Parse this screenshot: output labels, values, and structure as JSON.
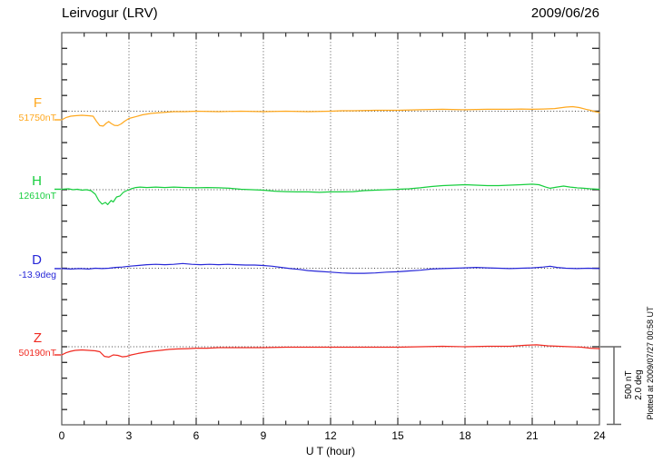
{
  "header": {
    "title": "Leirvogur (LRV)",
    "date": "2009/06/26"
  },
  "axis": {
    "xlabel": "U T (hour)",
    "x_ticks": [
      "0",
      "3",
      "6",
      "9",
      "12",
      "15",
      "18",
      "21",
      "24"
    ]
  },
  "scale_bar": {
    "nt": "500 nT",
    "deg": "2.0 deg"
  },
  "footer": {
    "note": "Plotted at 2009/07/27 00:58 UT"
  },
  "chart_data": {
    "type": "line",
    "title": "Leirvogur (LRV)",
    "date": "2009/06/26",
    "xlabel": "U T (hour)",
    "x_range": [
      0,
      24
    ],
    "x_ticks": [
      0,
      3,
      6,
      9,
      12,
      15,
      18,
      21,
      24
    ],
    "grid": "vertical dotted lines every 3 hours; dotted horizontal baseline per channel",
    "legend_position": "left channel labels",
    "scale": {
      "bar_nT": 500,
      "bar_deg": 2.0,
      "note": "vertical scale bar equals 500 nT or 2.0 deg"
    },
    "series": [
      {
        "name": "F",
        "value_label": "51750nT",
        "base_value": 51750,
        "unit": "nT",
        "color": "#FFA81E",
        "points": [
          [
            0,
            -55
          ],
          [
            0.2,
            -40
          ],
          [
            0.4,
            -32
          ],
          [
            0.6,
            -29
          ],
          [
            0.9,
            -26
          ],
          [
            1.2,
            -29
          ],
          [
            1.4,
            -32
          ],
          [
            1.55,
            -64
          ],
          [
            1.7,
            -92
          ],
          [
            1.85,
            -95
          ],
          [
            2.0,
            -75
          ],
          [
            2.1,
            -66
          ],
          [
            2.2,
            -78
          ],
          [
            2.35,
            -90
          ],
          [
            2.5,
            -92
          ],
          [
            2.65,
            -81
          ],
          [
            2.8,
            -64
          ],
          [
            3.0,
            -46
          ],
          [
            3.3,
            -35
          ],
          [
            3.6,
            -23
          ],
          [
            4.0,
            -14
          ],
          [
            4.4,
            -9
          ],
          [
            5.0,
            -3
          ],
          [
            5.5,
            -3
          ],
          [
            6,
            0
          ],
          [
            7,
            -3
          ],
          [
            8,
            0
          ],
          [
            9,
            -3
          ],
          [
            10,
            0
          ],
          [
            11,
            -3
          ],
          [
            12,
            0
          ],
          [
            12.5,
            3
          ],
          [
            13,
            3
          ],
          [
            14,
            6
          ],
          [
            15,
            6
          ],
          [
            16,
            9
          ],
          [
            17,
            12
          ],
          [
            18,
            9
          ],
          [
            19,
            12
          ],
          [
            20,
            12
          ],
          [
            20.5,
            14
          ],
          [
            21,
            12
          ],
          [
            21.5,
            14
          ],
          [
            22,
            17
          ],
          [
            22.5,
            26
          ],
          [
            22.8,
            29
          ],
          [
            23.1,
            23
          ],
          [
            23.4,
            12
          ],
          [
            23.6,
            6
          ],
          [
            23.8,
            -3
          ],
          [
            24,
            -9
          ]
        ]
      },
      {
        "name": "H",
        "value_label": "12610nT",
        "base_value": 12610,
        "unit": "nT",
        "color": "#17CE3E",
        "points": [
          [
            0,
            3
          ],
          [
            0.3,
            6
          ],
          [
            0.5,
            0
          ],
          [
            0.7,
            3
          ],
          [
            0.9,
            -3
          ],
          [
            1.1,
            0
          ],
          [
            1.3,
            -6
          ],
          [
            1.5,
            -29
          ],
          [
            1.65,
            -69
          ],
          [
            1.8,
            -92
          ],
          [
            1.95,
            -81
          ],
          [
            2.05,
            -95
          ],
          [
            2.2,
            -69
          ],
          [
            2.3,
            -78
          ],
          [
            2.45,
            -46
          ],
          [
            2.6,
            -40
          ],
          [
            2.75,
            -17
          ],
          [
            2.9,
            -6
          ],
          [
            3.1,
            6
          ],
          [
            3.3,
            14
          ],
          [
            3.5,
            17
          ],
          [
            3.8,
            14
          ],
          [
            4.2,
            17
          ],
          [
            4.6,
            14
          ],
          [
            5.0,
            17
          ],
          [
            5.5,
            14
          ],
          [
            6.0,
            12
          ],
          [
            6.5,
            14
          ],
          [
            7.0,
            12
          ],
          [
            7.5,
            9
          ],
          [
            8.0,
            3
          ],
          [
            8.5,
            0
          ],
          [
            9.0,
            -3
          ],
          [
            9.5,
            -9
          ],
          [
            10,
            -12
          ],
          [
            10.5,
            -14
          ],
          [
            11,
            -14
          ],
          [
            11.5,
            -17
          ],
          [
            12,
            -14
          ],
          [
            12.5,
            -14
          ],
          [
            13,
            -12
          ],
          [
            13.5,
            -6
          ],
          [
            14,
            -3
          ],
          [
            14.5,
            0
          ],
          [
            15,
            3
          ],
          [
            15.5,
            6
          ],
          [
            16,
            12
          ],
          [
            16.5,
            20
          ],
          [
            17,
            26
          ],
          [
            17.5,
            29
          ],
          [
            18,
            32
          ],
          [
            18.5,
            29
          ],
          [
            19,
            26
          ],
          [
            19.5,
            26
          ],
          [
            20,
            29
          ],
          [
            20.5,
            32
          ],
          [
            21,
            35
          ],
          [
            21.3,
            32
          ],
          [
            21.6,
            17
          ],
          [
            21.8,
            9
          ],
          [
            22.1,
            17
          ],
          [
            22.4,
            23
          ],
          [
            22.7,
            17
          ],
          [
            23,
            12
          ],
          [
            23.3,
            9
          ],
          [
            23.6,
            6
          ],
          [
            24,
            3
          ]
        ]
      },
      {
        "name": "D",
        "value_label": "-13.9deg",
        "base_value": -13.9,
        "unit": "deg",
        "color": "#2727D8",
        "points": [
          [
            0,
            -0.01
          ],
          [
            0.4,
            -0.02
          ],
          [
            0.8,
            -0.01
          ],
          [
            1.2,
            -0.02
          ],
          [
            1.5,
            0
          ],
          [
            1.8,
            -0.01
          ],
          [
            2.1,
            0
          ],
          [
            2.4,
            0.02
          ],
          [
            2.7,
            0.03
          ],
          [
            3.0,
            0.05
          ],
          [
            3.4,
            0.07
          ],
          [
            3.8,
            0.09
          ],
          [
            4.2,
            0.1
          ],
          [
            4.6,
            0.09
          ],
          [
            5.0,
            0.1
          ],
          [
            5.4,
            0.12
          ],
          [
            5.8,
            0.1
          ],
          [
            6.2,
            0.09
          ],
          [
            6.6,
            0.1
          ],
          [
            7.0,
            0.09
          ],
          [
            7.4,
            0.1
          ],
          [
            7.8,
            0.09
          ],
          [
            8.2,
            0.08
          ],
          [
            8.6,
            0.08
          ],
          [
            9.0,
            0.07
          ],
          [
            9.4,
            0.05
          ],
          [
            9.8,
            0.02
          ],
          [
            10.2,
            -0.01
          ],
          [
            10.6,
            -0.03
          ],
          [
            11,
            -0.06
          ],
          [
            11.5,
            -0.08
          ],
          [
            12,
            -0.1
          ],
          [
            12.5,
            -0.12
          ],
          [
            13,
            -0.13
          ],
          [
            13.5,
            -0.13
          ],
          [
            14,
            -0.12
          ],
          [
            14.5,
            -0.1
          ],
          [
            15,
            -0.09
          ],
          [
            15.5,
            -0.07
          ],
          [
            16,
            -0.05
          ],
          [
            16.5,
            -0.02
          ],
          [
            17,
            -0.01
          ],
          [
            17.5,
            0
          ],
          [
            18,
            0.01
          ],
          [
            18.5,
            0.02
          ],
          [
            19,
            0.01
          ],
          [
            19.5,
            0
          ],
          [
            20,
            -0.01
          ],
          [
            20.5,
            0
          ],
          [
            21,
            0.01
          ],
          [
            21.5,
            0.03
          ],
          [
            21.8,
            0.05
          ],
          [
            22.1,
            0.02
          ],
          [
            22.5,
            0
          ],
          [
            23,
            -0.01
          ],
          [
            23.5,
            0
          ],
          [
            24,
            -0.01
          ]
        ]
      },
      {
        "name": "Z",
        "value_label": "50190nT",
        "base_value": 50190,
        "unit": "nT",
        "color": "#F02A21",
        "points": [
          [
            0,
            -52
          ],
          [
            0.2,
            -38
          ],
          [
            0.4,
            -29
          ],
          [
            0.6,
            -23
          ],
          [
            0.9,
            -20
          ],
          [
            1.2,
            -23
          ],
          [
            1.5,
            -26
          ],
          [
            1.7,
            -32
          ],
          [
            1.9,
            -61
          ],
          [
            2.1,
            -66
          ],
          [
            2.3,
            -52
          ],
          [
            2.5,
            -55
          ],
          [
            2.7,
            -64
          ],
          [
            2.9,
            -61
          ],
          [
            3.1,
            -52
          ],
          [
            3.4,
            -43
          ],
          [
            3.7,
            -35
          ],
          [
            4.0,
            -29
          ],
          [
            4.4,
            -23
          ],
          [
            4.8,
            -17
          ],
          [
            5.2,
            -14
          ],
          [
            5.6,
            -12
          ],
          [
            6.0,
            -9
          ],
          [
            6.5,
            -9
          ],
          [
            7,
            -6
          ],
          [
            8,
            -6
          ],
          [
            9,
            -6
          ],
          [
            10,
            -3
          ],
          [
            11,
            -3
          ],
          [
            12,
            -3
          ],
          [
            13,
            -3
          ],
          [
            14,
            -3
          ],
          [
            15,
            -3
          ],
          [
            16,
            0
          ],
          [
            17,
            3
          ],
          [
            18,
            0
          ],
          [
            19,
            3
          ],
          [
            20,
            3
          ],
          [
            20.7,
            9
          ],
          [
            21.2,
            12
          ],
          [
            21.7,
            6
          ],
          [
            22.2,
            3
          ],
          [
            22.7,
            0
          ],
          [
            23.2,
            -3
          ],
          [
            23.6,
            -9
          ],
          [
            24,
            -12
          ]
        ]
      }
    ]
  }
}
